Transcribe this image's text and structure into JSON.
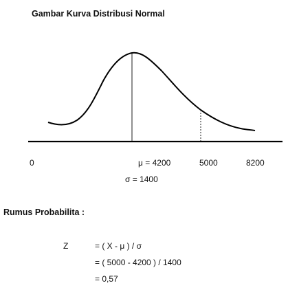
{
  "title": "Gambar Kurva Distribusi Normal",
  "axis_labels": {
    "zero": "0",
    "mu": "μ =  4200",
    "x_5000": "5000",
    "x_8200": "8200"
  },
  "sigma_label": "σ = 1400",
  "formula": {
    "heading": "Rumus Probabilita :",
    "variable": "Z",
    "lines": [
      "= ( X - μ ) / σ",
      "= ( 5000 - 4200 ) / 1400",
      "= 0,57"
    ]
  },
  "curve": {
    "mean": 4200,
    "sd": 1400,
    "marker_value": 5000,
    "axis_min": 0,
    "axis_max": 8200
  }
}
